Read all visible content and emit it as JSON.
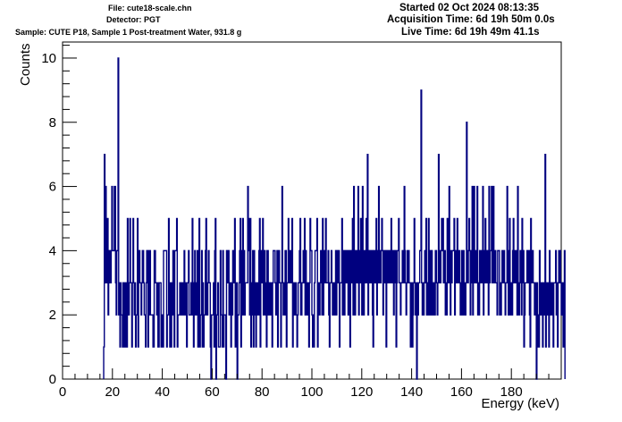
{
  "header": {
    "file": "File: cute18-scale.chn",
    "detector": "Detector: PGT",
    "sample": "Sample: CUTE P18, Sample 1 Post-treatment Water, 931.8 g",
    "started": "Started 02 Oct 2024 08:13:35",
    "acquisition_time": "Acquisition Time: 6d 19h 50m 0.0s",
    "live_time": "Live Time: 6d 19h 49m 41.1s"
  },
  "colors": {
    "histogram": "#00007f",
    "axis": "#000000",
    "background": "#ffffff"
  },
  "chart_data": {
    "type": "histogram",
    "title": "",
    "xlabel": "Energy (keV)",
    "ylabel": "Counts",
    "xlim": [
      0,
      200
    ],
    "ylim": [
      0,
      10.5
    ],
    "grid": false,
    "legend": "none",
    "x_ticks": [
      0,
      20,
      40,
      60,
      80,
      100,
      120,
      140,
      160,
      180
    ],
    "y_ticks": [
      0,
      2,
      4,
      6,
      8,
      10
    ],
    "x_tick_labels": [
      "0",
      "20",
      "40",
      "60",
      "80",
      "100",
      "120",
      "140",
      "160",
      "180"
    ],
    "y_tick_labels": [
      "0",
      "2",
      "4",
      "6",
      "8",
      "10"
    ],
    "bin_start": 16.5,
    "bin_width": 0.25,
    "counts": [
      1,
      7,
      3,
      6,
      4,
      3,
      5,
      2,
      4,
      3,
      4,
      3,
      4,
      6,
      4,
      4,
      4,
      6,
      6,
      3,
      2,
      4,
      4,
      10,
      2,
      3,
      1,
      3,
      2,
      2,
      1,
      3,
      3,
      1,
      1,
      3,
      2,
      1,
      5,
      2,
      2,
      3,
      5,
      3,
      3,
      1,
      3,
      5,
      3,
      2,
      3,
      1,
      2,
      2,
      5,
      1,
      3,
      4,
      3,
      3,
      2,
      3,
      4,
      4,
      3,
      2,
      2,
      1,
      3,
      4,
      3,
      1,
      4,
      2,
      4,
      2,
      2,
      2,
      2,
      1,
      1,
      4,
      4,
      3,
      3,
      2,
      3,
      1,
      1,
      3,
      3,
      3,
      1,
      1,
      2,
      1,
      4,
      4,
      4,
      4,
      4,
      1,
      2,
      2,
      5,
      2,
      1,
      3,
      1,
      2,
      3,
      4,
      2,
      1,
      4,
      4,
      4,
      5,
      1,
      2,
      2,
      2,
      3,
      3,
      2,
      2,
      3,
      3,
      2,
      4,
      2,
      3,
      3,
      1,
      3,
      3,
      4,
      2,
      2,
      2,
      3,
      2,
      5,
      2,
      1,
      3,
      4,
      2,
      2,
      3,
      4,
      1,
      2,
      5,
      1,
      2,
      2,
      4,
      1,
      3,
      1,
      2,
      2,
      4,
      5,
      2,
      2,
      3,
      4,
      3,
      3,
      1,
      0,
      2,
      2,
      2,
      3,
      1,
      4,
      5,
      0,
      2,
      2,
      3,
      1,
      1,
      1,
      4,
      2,
      2,
      1,
      4,
      1,
      2,
      2,
      2,
      0,
      4,
      3,
      3,
      4,
      2,
      3,
      2,
      1,
      3,
      2,
      4,
      3,
      3,
      5,
      1,
      2,
      3,
      0,
      2,
      2,
      3,
      4,
      5,
      1,
      2,
      4,
      5,
      2,
      4,
      2,
      3,
      3,
      3,
      3,
      6,
      5,
      4,
      2,
      5,
      1,
      3,
      2,
      4,
      1,
      4,
      3,
      2,
      1,
      3,
      3,
      2,
      2,
      4,
      5,
      1,
      3,
      4,
      3,
      5,
      2,
      2,
      4,
      2,
      3,
      1,
      4,
      4,
      2,
      3,
      2,
      3,
      2,
      3,
      1,
      3,
      4,
      4,
      4,
      3,
      2,
      3,
      4,
      1,
      3,
      4,
      3,
      3,
      1,
      3,
      6,
      3,
      2,
      3,
      2,
      4,
      4,
      1,
      3,
      3,
      5,
      3,
      3,
      4,
      3,
      3,
      5,
      1,
      3,
      2,
      3,
      2,
      3,
      2,
      1,
      2,
      3,
      3,
      4,
      5,
      2,
      2,
      3,
      3,
      4,
      3,
      5,
      2,
      4,
      2,
      3,
      3,
      2,
      1,
      3,
      5,
      4,
      4,
      2,
      1,
      2,
      1,
      3,
      4,
      4,
      4,
      5,
      1,
      3,
      3,
      2,
      3,
      4,
      4,
      2,
      5,
      2,
      3,
      4,
      3,
      5,
      3,
      3,
      3,
      4,
      2,
      1,
      3,
      3,
      4,
      3,
      2,
      3,
      2,
      3,
      2,
      4,
      2,
      3,
      4,
      3,
      4,
      1,
      3,
      3,
      3,
      5,
      2,
      4,
      3,
      2,
      4,
      3,
      4,
      3,
      4,
      2,
      3,
      4,
      1,
      3,
      4,
      3,
      5,
      2,
      6,
      3,
      2,
      4,
      3,
      4,
      3,
      6,
      2,
      3,
      4,
      5,
      3,
      2,
      6,
      3,
      2,
      4,
      3,
      4,
      5,
      3,
      7,
      2,
      3,
      4,
      3,
      4,
      3,
      4,
      2,
      1,
      4,
      3,
      4,
      3,
      5,
      2,
      4,
      3,
      6,
      3,
      4,
      3,
      4,
      5,
      4,
      2,
      3,
      4,
      4,
      3,
      1,
      4,
      3,
      4,
      3,
      4,
      3,
      4,
      5,
      3,
      4,
      3,
      2,
      4,
      3,
      4,
      1,
      3,
      4,
      4,
      5,
      3,
      3,
      2,
      3,
      3,
      4,
      3,
      3,
      6,
      4,
      3,
      2,
      3,
      4,
      3,
      4,
      3,
      3,
      1,
      3,
      3,
      1,
      2,
      3,
      5,
      3,
      2,
      3,
      0,
      3,
      2,
      3,
      3,
      4,
      4,
      9,
      3,
      2,
      3,
      2,
      3,
      4,
      3,
      5,
      2,
      3,
      2,
      5,
      3,
      2,
      4,
      2,
      4,
      3,
      2,
      3,
      3,
      2,
      4,
      4,
      3,
      2,
      3,
      7,
      3,
      4,
      3,
      4,
      5,
      4,
      5,
      3,
      4,
      4,
      2,
      3,
      2,
      5,
      4,
      3,
      6,
      3,
      2,
      4,
      3,
      4,
      4,
      4,
      5,
      2,
      3,
      4,
      3,
      5,
      4,
      3,
      4,
      3,
      2,
      3,
      4,
      2,
      3,
      4,
      2,
      3,
      2,
      3,
      8,
      3,
      3,
      4,
      5,
      4,
      2,
      3,
      4,
      6,
      2,
      3,
      6,
      3,
      3,
      4,
      3,
      6,
      2,
      3,
      2,
      4,
      3,
      3,
      4,
      3,
      6,
      2,
      4,
      3,
      5,
      3,
      3,
      4,
      3,
      2,
      6,
      3,
      4,
      4,
      6,
      3,
      4,
      6,
      3,
      3,
      4,
      3,
      3,
      2,
      4,
      4,
      4,
      2,
      3,
      2,
      3,
      4,
      3,
      3,
      4,
      3,
      2,
      3,
      3,
      6,
      4,
      2,
      4,
      5,
      2,
      3,
      3,
      2,
      4,
      5,
      3,
      4,
      3,
      3,
      4,
      2,
      6,
      3,
      2,
      3,
      4,
      3,
      2,
      5,
      3,
      4,
      1,
      2,
      3,
      3,
      3,
      4,
      3,
      3,
      4,
      2,
      1,
      5,
      3,
      3,
      4,
      3,
      3,
      2,
      3,
      3,
      0,
      3,
      1,
      2,
      1,
      4,
      2,
      3,
      3,
      2,
      1,
      3,
      2,
      3,
      7,
      1,
      3,
      2,
      3,
      3,
      1,
      4,
      3,
      2,
      3,
      2,
      3,
      1,
      3,
      3,
      3,
      4,
      2,
      3,
      1,
      3,
      4,
      3,
      4,
      3,
      2,
      3,
      3,
      1,
      2,
      4
    ]
  }
}
